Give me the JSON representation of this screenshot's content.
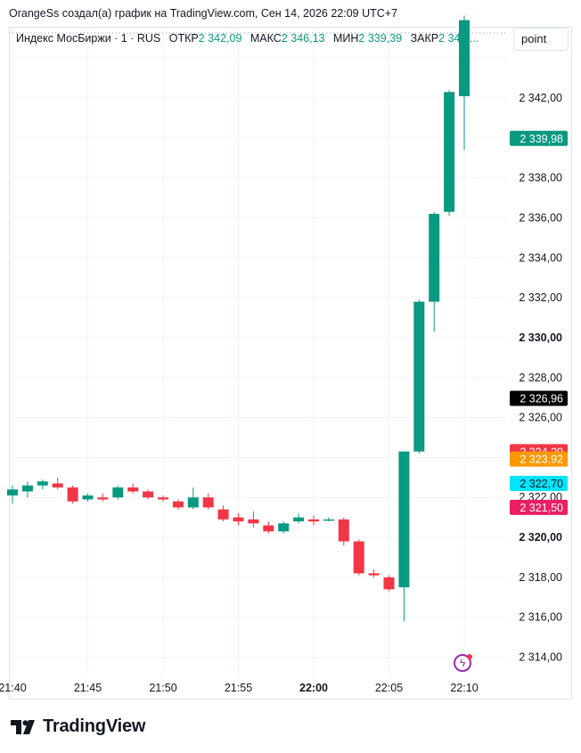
{
  "header": {
    "credit": "OrangeSs создал(а) график на TradingView.com, Сен 14, 2026 22:09 UTC+7"
  },
  "legend": {
    "symbol": "Индекс МосБиржи · 1 · RUS",
    "open_label": "ОТКР",
    "open": "2 342,09",
    "high_label": "МАКС",
    "high": "2 346,13",
    "low_label": "МИН",
    "low": "2 339,39",
    "close_label": "ЗАКР",
    "close": "2 345,..."
  },
  "toolbar": {
    "scale_mode": "point"
  },
  "footer": {
    "brand": "TradingView"
  },
  "colors": {
    "up": "#089981",
    "down": "#f23645",
    "grid": "#f0f3fa",
    "text": "#131722"
  },
  "icons": {
    "logo": "tradingview-logo-icon",
    "lightning": "lightning-icon"
  },
  "chart_data": {
    "type": "candlestick",
    "ylim": [
      2313,
      2348
    ],
    "y_ticks": [
      {
        "value": 2342,
        "label": "2 342,00"
      },
      {
        "value": 2338,
        "label": "2 338,00"
      },
      {
        "value": 2336,
        "label": "2 336,00"
      },
      {
        "value": 2334,
        "label": "2 334,00"
      },
      {
        "value": 2332,
        "label": "2 332,00"
      },
      {
        "value": 2330,
        "label": "2 330,00",
        "bold": true
      },
      {
        "value": 2328,
        "label": "2 328,00"
      },
      {
        "value": 2326,
        "label": "2 326,00"
      },
      {
        "value": 2322,
        "label": "2 322,00"
      },
      {
        "value": 2320,
        "label": "2 320,00",
        "bold": true
      },
      {
        "value": 2318,
        "label": "2 318,00"
      },
      {
        "value": 2316,
        "label": "2 316,00"
      },
      {
        "value": 2314,
        "label": "2 314,00"
      }
    ],
    "x_ticks": [
      {
        "index": 0,
        "label": "21:40"
      },
      {
        "index": 5,
        "label": "21:45"
      },
      {
        "index": 10,
        "label": "21:50"
      },
      {
        "index": 15,
        "label": "21:55"
      },
      {
        "index": 20,
        "label": "22:00",
        "bold": true
      },
      {
        "index": 25,
        "label": "22:05"
      },
      {
        "index": 30,
        "label": "22:10"
      }
    ],
    "price_markers": [
      {
        "value": 2339.98,
        "label": "2 339,98",
        "color": "#089981"
      },
      {
        "value": 2326.96,
        "label": "2 326,96",
        "color": "#000000"
      },
      {
        "value": 2324.29,
        "label": "2 324,29",
        "color": "#f23645"
      },
      {
        "value": 2323.92,
        "label": "2 323,92",
        "color": "#ff9800"
      },
      {
        "value": 2322.7,
        "label": "2 322,70",
        "color": "#00e5ff",
        "text_color": "#131722"
      },
      {
        "value": 2321.5,
        "label": "2 321,50",
        "color": "#e91e63"
      }
    ],
    "candles": [
      {
        "time": "21:40",
        "open": 2322.1,
        "high": 2322.6,
        "low": 2321.7,
        "close": 2322.4
      },
      {
        "time": "21:41",
        "open": 2322.3,
        "high": 2322.8,
        "low": 2322.0,
        "close": 2322.6
      },
      {
        "time": "21:42",
        "open": 2322.6,
        "high": 2322.9,
        "low": 2322.4,
        "close": 2322.8
      },
      {
        "time": "21:43",
        "open": 2322.7,
        "high": 2323.0,
        "low": 2322.4,
        "close": 2322.5
      },
      {
        "time": "21:44",
        "open": 2322.5,
        "high": 2322.6,
        "low": 2321.7,
        "close": 2321.8
      },
      {
        "time": "21:45",
        "open": 2321.9,
        "high": 2322.2,
        "low": 2321.8,
        "close": 2322.1
      },
      {
        "time": "21:46",
        "open": 2322.0,
        "high": 2322.2,
        "low": 2321.8,
        "close": 2321.9
      },
      {
        "time": "21:47",
        "open": 2322.0,
        "high": 2322.6,
        "low": 2321.9,
        "close": 2322.5
      },
      {
        "time": "21:48",
        "open": 2322.5,
        "high": 2322.7,
        "low": 2322.2,
        "close": 2322.3
      },
      {
        "time": "21:49",
        "open": 2322.3,
        "high": 2322.4,
        "low": 2321.9,
        "close": 2322.0
      },
      {
        "time": "21:50",
        "open": 2322.0,
        "high": 2322.1,
        "low": 2321.8,
        "close": 2321.9
      },
      {
        "time": "21:51",
        "open": 2321.8,
        "high": 2321.9,
        "low": 2321.4,
        "close": 2321.5
      },
      {
        "time": "21:52",
        "open": 2321.5,
        "high": 2322.5,
        "low": 2321.4,
        "close": 2322.0
      },
      {
        "time": "21:53",
        "open": 2322.0,
        "high": 2322.2,
        "low": 2321.4,
        "close": 2321.5
      },
      {
        "time": "21:54",
        "open": 2321.4,
        "high": 2321.6,
        "low": 2320.8,
        "close": 2320.9
      },
      {
        "time": "21:55",
        "open": 2321.0,
        "high": 2321.2,
        "low": 2320.6,
        "close": 2320.8
      },
      {
        "time": "21:56",
        "open": 2320.9,
        "high": 2321.3,
        "low": 2320.5,
        "close": 2320.7
      },
      {
        "time": "21:57",
        "open": 2320.6,
        "high": 2320.8,
        "low": 2320.2,
        "close": 2320.3
      },
      {
        "time": "21:58",
        "open": 2320.3,
        "high": 2320.8,
        "low": 2320.2,
        "close": 2320.7
      },
      {
        "time": "21:59",
        "open": 2320.8,
        "high": 2321.2,
        "low": 2320.7,
        "close": 2321.0
      },
      {
        "time": "22:00",
        "open": 2320.9,
        "high": 2321.1,
        "low": 2320.6,
        "close": 2320.8
      },
      {
        "time": "22:01",
        "open": 2320.9,
        "high": 2321.0,
        "low": 2320.8,
        "close": 2320.9
      },
      {
        "time": "22:02",
        "open": 2320.9,
        "high": 2321.0,
        "low": 2319.6,
        "close": 2319.8
      },
      {
        "time": "22:03",
        "open": 2319.8,
        "high": 2319.9,
        "low": 2318.1,
        "close": 2318.2
      },
      {
        "time": "22:04",
        "open": 2318.2,
        "high": 2318.4,
        "low": 2318.0,
        "close": 2318.1
      },
      {
        "time": "22:05",
        "open": 2318.0,
        "high": 2318.1,
        "low": 2317.3,
        "close": 2317.4
      },
      {
        "time": "22:06",
        "open": 2317.5,
        "high": 2324.3,
        "low": 2315.8,
        "close": 2324.3
      },
      {
        "time": "22:07",
        "open": 2324.3,
        "high": 2331.9,
        "low": 2324.2,
        "close": 2331.8
      },
      {
        "time": "22:08",
        "open": 2331.8,
        "high": 2336.3,
        "low": 2330.3,
        "close": 2336.2
      },
      {
        "time": "22:09",
        "open": 2336.3,
        "high": 2342.4,
        "low": 2336.1,
        "close": 2342.3
      },
      {
        "time": "22:10",
        "open": 2342.09,
        "high": 2346.13,
        "low": 2339.39,
        "close": 2345.9
      }
    ]
  }
}
